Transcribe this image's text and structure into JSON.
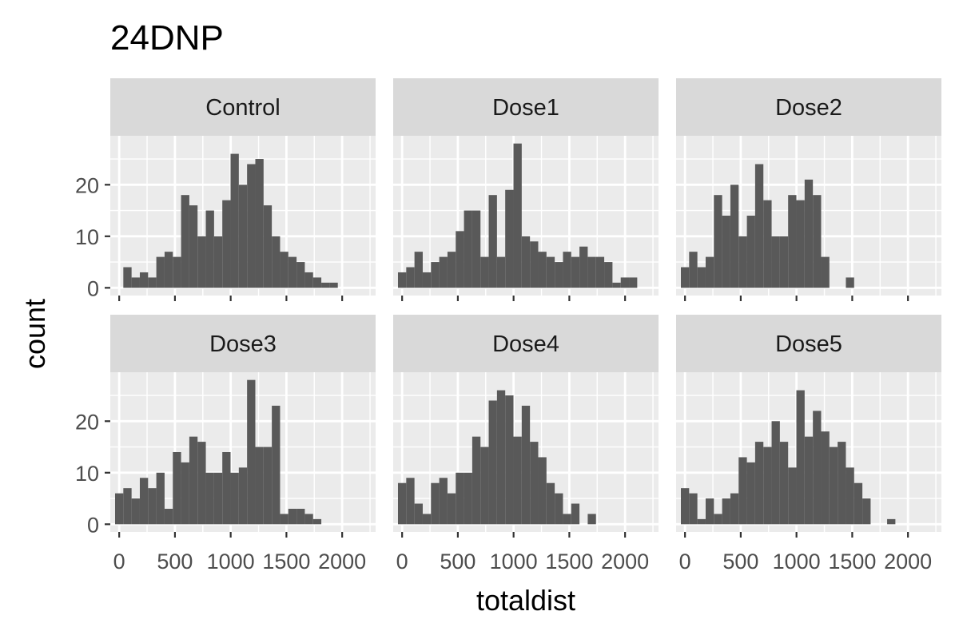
{
  "chart_data": {
    "type": "bar",
    "title": "24DNP",
    "xlabel": "totaldist",
    "ylabel": "count",
    "xlim": [
      -80,
      2300
    ],
    "ylim": [
      -1.5,
      29.5
    ],
    "x_ticks": [
      "0",
      "500",
      "1000",
      "1500",
      "2000"
    ],
    "x_tick_values": [
      0,
      500,
      1000,
      1500,
      2000
    ],
    "y_ticks": [
      "0",
      "10",
      "20"
    ],
    "y_tick_values": [
      0,
      10,
      20
    ],
    "grid": true,
    "layout": "facet_wrap 3 columns x 2 rows",
    "bin_width": 74,
    "bin_start": -37,
    "bar_color": "#595959",
    "panel_color": "#ebebeb",
    "strip_color": "#d9d9d9",
    "panels": [
      {
        "name": "Control",
        "counts": [
          0,
          4,
          2,
          3,
          2,
          6,
          7,
          6,
          18,
          16,
          10,
          15,
          10,
          17,
          26,
          20,
          24,
          25,
          16,
          10,
          7,
          6,
          5,
          3,
          2,
          1,
          1
        ]
      },
      {
        "name": "Dose1",
        "counts": [
          3,
          4,
          7,
          3,
          5,
          6,
          7,
          11,
          15,
          15,
          6,
          18,
          6,
          19,
          28,
          10,
          9,
          7,
          6,
          5,
          7,
          6,
          8,
          6,
          6,
          5,
          1,
          2,
          2
        ]
      },
      {
        "name": "Dose2",
        "counts": [
          4,
          7,
          4,
          6,
          18,
          14,
          20,
          10,
          14,
          24,
          17,
          10,
          10,
          18,
          17,
          21,
          18,
          6,
          0,
          0,
          2
        ]
      },
      {
        "name": "Dose3",
        "counts": [
          6,
          7,
          5,
          9,
          7,
          10,
          3,
          14,
          12,
          17,
          16,
          10,
          10,
          14,
          10,
          11,
          28,
          15,
          15,
          23,
          2,
          3,
          3,
          2,
          1
        ]
      },
      {
        "name": "Dose4",
        "counts": [
          8,
          9,
          4,
          2,
          8,
          9,
          6,
          10,
          10,
          17,
          15,
          24,
          26,
          25,
          17,
          23,
          16,
          13,
          8,
          6,
          2,
          4,
          0,
          2
        ]
      },
      {
        "name": "Dose5",
        "counts": [
          7,
          6,
          1,
          5,
          2,
          5,
          6,
          13,
          12,
          16,
          15,
          20,
          16,
          11,
          26,
          17,
          22,
          18,
          15,
          16,
          11,
          8,
          5,
          0,
          0,
          1
        ]
      }
    ]
  }
}
